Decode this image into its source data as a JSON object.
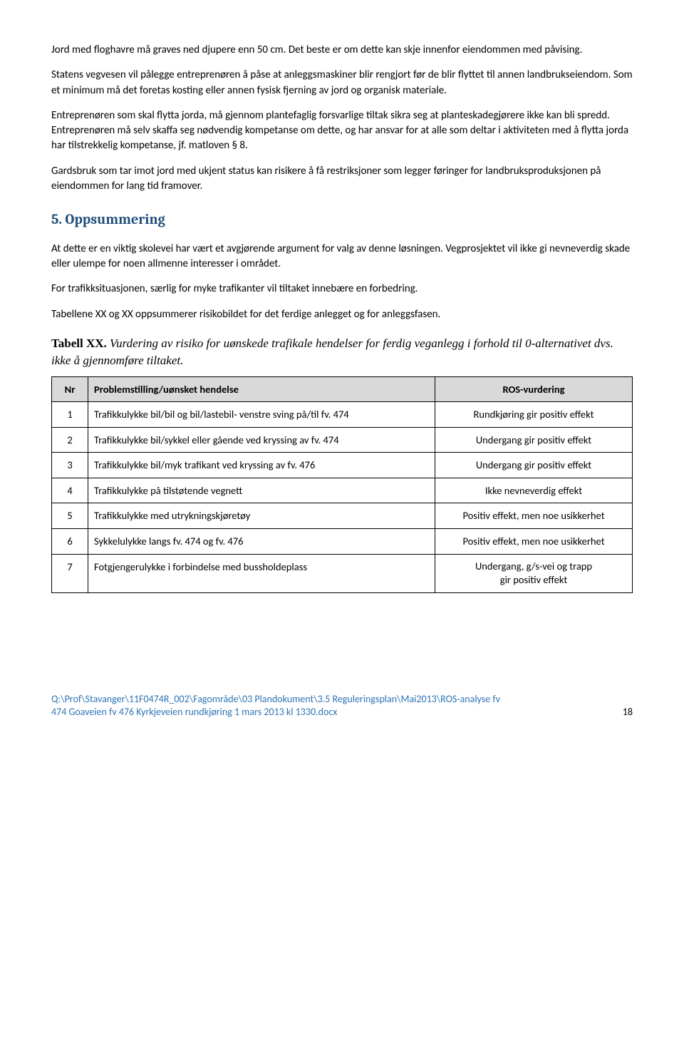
{
  "paragraphs": {
    "p1": "Jord med floghavre må graves ned djupere enn 50 cm. Det beste er om dette kan skje innenfor eiendommen med påvising.",
    "p2": "Statens vegvesen vil pålegge entreprenøren å påse at anleggsmaskiner blir rengjort før de blir flyttet til annen landbrukseiendom. Som et minimum må det foretas kosting eller annen fysisk fjerning av jord og organisk materiale.",
    "p3": "Entreprenøren som skal flytta jorda, må gjennom plantefaglig forsvarlige tiltak sikra seg at planteskadegjørere ikke kan bli spredd. Entreprenøren må selv skaffa seg nødvendig kompetanse om dette, og har ansvar for at alle som deltar i aktiviteten med å flytta jorda har tilstrekkelig kompetanse, jf. matloven § 8.",
    "p4": "Gardsbruk som tar imot jord med ukjent status kan risikere å få restriksjoner som legger føringer for landbruksproduksjonen på eiendommen for lang tid framover.",
    "p5": "At dette er en viktig skolevei har vært et avgjørende argument for valg av denne løsningen. Vegprosjektet vil ikke gi nevneverdig skade eller ulempe for noen allmenne interesser i området.",
    "p6": "For trafikksituasjonen, særlig for myke trafikanter vil tiltaket innebære en forbedring.",
    "p7": "Tabellene XX og XX oppsummerer risikobildet for det ferdige anlegget og for anleggsfasen."
  },
  "heading": "5. Oppsummering",
  "tableCaption": {
    "label": "Tabell XX.",
    "text": " Vurdering av risiko for uønskede trafikale hendelser for ferdig veganlegg i forhold til 0-alternativet dvs. ikke å gjennomføre tiltaket."
  },
  "table": {
    "headers": {
      "nr": "Nr",
      "desc": "Problemstilling/uønsket hendelse",
      "ros": "ROS-vurdering"
    },
    "rows": [
      {
        "nr": "1",
        "desc": "Trafikkulykke bil/bil og bil/lastebil- venstre sving på/til fv. 474",
        "ros": "Rundkjøring gir positiv effekt"
      },
      {
        "nr": "2",
        "desc": "Trafikkulykke bil/sykkel eller gående ved kryssing av fv. 474",
        "ros": "Undergang gir positiv effekt"
      },
      {
        "nr": "3",
        "desc": "Trafikkulykke bil/myk trafikant ved kryssing av  fv. 476",
        "ros": "Undergang gir positiv effekt"
      },
      {
        "nr": "4",
        "desc": "Trafikkulykke på tilstøtende vegnett",
        "ros": "Ikke nevneverdig effekt"
      },
      {
        "nr": "5",
        "desc": "Trafikkulykke med utrykningskjøretøy",
        "ros": "Positiv effekt, men noe usikkerhet"
      },
      {
        "nr": "6",
        "desc": "Sykkelulykke langs fv. 474 og fv. 476",
        "ros": "Positiv effekt, men noe usikkerhet"
      },
      {
        "nr": "7",
        "desc": "Fotgjengerulykke i forbindelse med bussholdeplass",
        "ros": "Undergang, g/s-vei og trapp\ngir positiv effekt"
      }
    ]
  },
  "footer": {
    "line1": "Q:\\Prof\\Stavanger\\11F0474R_002\\Fagområde\\03 Plandokument\\3.5 Reguleringsplan\\Mai2013\\ROS-analyse fv",
    "line2": "474 Goaveien fv 476 Kyrkjeveien rundkjøring  1 mars 2013 kl 1330.docx",
    "page": "18"
  }
}
